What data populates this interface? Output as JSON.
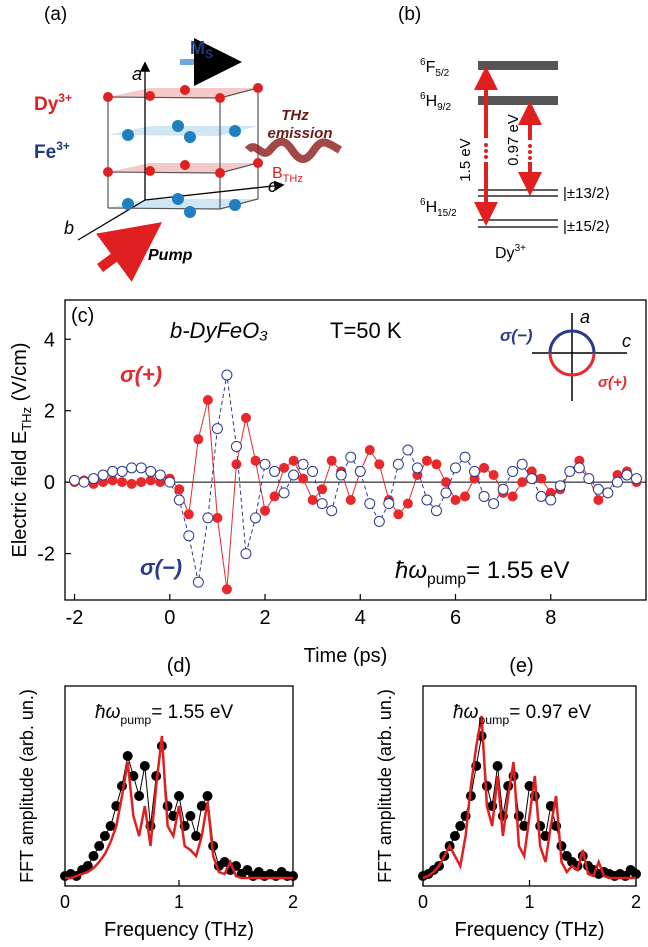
{
  "panel_a": {
    "label": "(a)",
    "axis_a": "a",
    "axis_b": "b",
    "axis_c": "c",
    "ms_base": "M",
    "ms_sub": "S",
    "dy_base": "Dy",
    "dy_sup": "3+",
    "fe_base": "Fe",
    "fe_sup": "3+",
    "thz_line1": "THz",
    "thz_line2": "emission",
    "b_base": "B",
    "b_sub": "THz",
    "pump": "Pump"
  },
  "panel_b": {
    "label": "(b)",
    "levels": [
      {
        "sup": "6",
        "base": "F",
        "sub": "5/2"
      },
      {
        "sup": "6",
        "base": "H",
        "sub": "9/2"
      },
      {
        "sup": "6",
        "base": "H",
        "sub": "15/2"
      }
    ],
    "energy_1": "1.5 eV",
    "energy_2": "0.97 eV",
    "state_1": "|±13/2⟩",
    "state_2": "|±15/2⟩",
    "ion_base": "Dy",
    "ion_sup": "3+"
  },
  "chart_data": [
    {
      "type": "line",
      "panel_label": "(c)",
      "title": "b-DyFeO₃",
      "temperature": "T=50 K",
      "xlabel": "Time (ps)",
      "ylabel": {
        "text": "Electric field E",
        "sub": "THz",
        "unit": " (V/cm)"
      },
      "pump": {
        "symbol": "ħω",
        "sub": "pump",
        "text": "= 1.55 eV"
      },
      "inset": {
        "a": "a",
        "c": "c"
      },
      "x": [
        -2,
        -1.8,
        -1.6,
        -1.4,
        -1.2,
        -1,
        -0.8,
        -0.6,
        -0.4,
        -0.2,
        0,
        0.2,
        0.4,
        0.6,
        0.8,
        1,
        1.2,
        1.4,
        1.6,
        1.8,
        2,
        2.2,
        2.4,
        2.6,
        2.8,
        3,
        3.2,
        3.4,
        3.6,
        3.8,
        4,
        4.2,
        4.4,
        4.6,
        4.8,
        5,
        5.2,
        5.4,
        5.6,
        5.8,
        6,
        6.2,
        6.4,
        6.6,
        6.8,
        7,
        7.2,
        7.4,
        7.6,
        7.8,
        8,
        8.2,
        8.4,
        8.6,
        8.8,
        9,
        9.2,
        9.4,
        9.6,
        9.8
      ],
      "series": [
        {
          "name": "σ(+)",
          "color": "#e8282b",
          "marker": "filled",
          "values": [
            0,
            0.05,
            -0.05,
            0,
            0.05,
            0,
            -0.05,
            0,
            0.05,
            0,
            0.1,
            -0.2,
            -0.9,
            1.2,
            2.3,
            -1.0,
            -3.0,
            0.5,
            1.8,
            0.6,
            -0.8,
            -0.4,
            0.4,
            0.6,
            0.1,
            -0.5,
            -0.2,
            0.6,
            0.3,
            -0.5,
            0.3,
            0.9,
            0.5,
            -0.5,
            -0.9,
            -0.6,
            0.2,
            0.6,
            0.5,
            0.0,
            -0.5,
            -0.4,
            0.1,
            0.4,
            0.2,
            -0.3,
            -0.4,
            0.0,
            0.3,
            0.1,
            -0.3,
            -0.2,
            0.3,
            0.6,
            0.1,
            -0.5,
            -0.3,
            0.2,
            0.3,
            0.0
          ]
        },
        {
          "name": "σ(−)",
          "color": "#2b3a8c",
          "marker": "open",
          "values": [
            0.05,
            0,
            0.1,
            0.2,
            0.3,
            0.3,
            0.4,
            0.4,
            0.3,
            0.2,
            0.0,
            -0.5,
            -1.5,
            -2.8,
            -1.0,
            1.5,
            3.0,
            1.0,
            -2.0,
            -1.0,
            0.5,
            0.3,
            -0.3,
            0.2,
            0.5,
            0.3,
            -0.6,
            -0.8,
            0.2,
            0.7,
            0.3,
            -0.6,
            -1.1,
            -0.6,
            0.5,
            0.9,
            0.4,
            -0.5,
            -0.8,
            -0.3,
            0.4,
            0.7,
            0.3,
            -0.4,
            -0.6,
            -0.2,
            0.3,
            0.5,
            0.1,
            -0.4,
            -0.5,
            -0.1,
            0.3,
            0.4,
            0.1,
            -0.2,
            -0.3,
            0.0,
            0.2,
            0.1
          ]
        }
      ],
      "xlim": [
        -2.2,
        10
      ],
      "ylim": [
        -3.3,
        5.1
      ],
      "xticks": [
        -2,
        0,
        2,
        4,
        6,
        8
      ],
      "yticks": [
        -2,
        0,
        2,
        4
      ],
      "zero_line": true
    },
    {
      "type": "line",
      "panel_label": "(d)",
      "xlabel": "Frequency (THz)",
      "ylabel": "FFT amplitude (arb. un.)",
      "pump": {
        "symbol": "ħω",
        "sub": "pump",
        "text": "= 1.55 eV"
      },
      "x": [
        0,
        0.05,
        0.1,
        0.15,
        0.2,
        0.25,
        0.3,
        0.35,
        0.4,
        0.45,
        0.5,
        0.55,
        0.6,
        0.65,
        0.7,
        0.75,
        0.8,
        0.85,
        0.9,
        0.95,
        1,
        1.05,
        1.1,
        1.15,
        1.2,
        1.25,
        1.3,
        1.35,
        1.4,
        1.45,
        1.5,
        1.55,
        1.6,
        1.65,
        1.7,
        1.75,
        1.8,
        1.85,
        1.9,
        1.95,
        2
      ],
      "series": [
        {
          "color": "#000000",
          "marker": "filled",
          "values": [
            0.05,
            0.06,
            0.05,
            0.08,
            0.1,
            0.15,
            0.2,
            0.25,
            0.3,
            0.4,
            0.5,
            0.65,
            0.55,
            0.45,
            0.6,
            0.3,
            0.55,
            0.7,
            0.4,
            0.35,
            0.45,
            0.3,
            0.35,
            0.25,
            0.4,
            0.45,
            0.2,
            0.1,
            0.12,
            0.08,
            0.1,
            0.06,
            0.08,
            0.05,
            0.07,
            0.05,
            0.06,
            0.05,
            0.07,
            0.05,
            0.05
          ]
        },
        {
          "color": "#e02020",
          "marker": "none",
          "values": [
            0.04,
            0.04,
            0.05,
            0.06,
            0.07,
            0.09,
            0.12,
            0.16,
            0.22,
            0.3,
            0.45,
            0.62,
            0.35,
            0.25,
            0.4,
            0.2,
            0.5,
            0.75,
            0.3,
            0.25,
            0.4,
            0.2,
            0.18,
            0.15,
            0.25,
            0.42,
            0.15,
            0.07,
            0.06,
            0.12,
            0.05,
            0.04,
            0.04,
            0.04,
            0.04,
            0.04,
            0.04,
            0.04,
            0.04,
            0.04,
            0.04
          ]
        }
      ],
      "xlim": [
        0,
        2
      ],
      "ylim": [
        0,
        1
      ],
      "xticks": [
        0,
        1,
        2
      ]
    },
    {
      "type": "line",
      "panel_label": "(e)",
      "xlabel": "Frequency (THz)",
      "ylabel": "FFT amplitude (arb. un.)",
      "pump": {
        "symbol": "ħω",
        "sub": "pump",
        "text": "= 0.97 eV"
      },
      "x": [
        0,
        0.05,
        0.1,
        0.15,
        0.2,
        0.25,
        0.3,
        0.35,
        0.4,
        0.45,
        0.5,
        0.55,
        0.6,
        0.65,
        0.7,
        0.75,
        0.8,
        0.85,
        0.9,
        0.95,
        1,
        1.05,
        1.1,
        1.15,
        1.2,
        1.25,
        1.3,
        1.35,
        1.4,
        1.45,
        1.5,
        1.55,
        1.6,
        1.65,
        1.7,
        1.75,
        1.8,
        1.85,
        1.9,
        1.95,
        2
      ],
      "series": [
        {
          "color": "#000000",
          "marker": "filled",
          "values": [
            0.05,
            0.06,
            0.08,
            0.1,
            0.15,
            0.2,
            0.25,
            0.3,
            0.35,
            0.45,
            0.6,
            0.75,
            0.5,
            0.4,
            0.6,
            0.35,
            0.5,
            0.55,
            0.35,
            0.3,
            0.5,
            0.45,
            0.3,
            0.25,
            0.4,
            0.3,
            0.2,
            0.15,
            0.12,
            0.1,
            0.15,
            0.1,
            0.08,
            0.06,
            0.07,
            0.06,
            0.05,
            0.06,
            0.05,
            0.08,
            0.06
          ]
        },
        {
          "color": "#e02020",
          "marker": "none",
          "values": [
            0.04,
            0.05,
            0.07,
            0.1,
            0.15,
            0.2,
            0.15,
            0.1,
            0.25,
            0.5,
            0.7,
            0.85,
            0.4,
            0.3,
            0.55,
            0.25,
            0.45,
            0.62,
            0.2,
            0.15,
            0.35,
            0.55,
            0.2,
            0.12,
            0.3,
            0.45,
            0.12,
            0.07,
            0.1,
            0.08,
            0.18,
            0.06,
            0.05,
            0.12,
            0.05,
            0.04,
            0.04,
            0.04,
            0.04,
            0.04,
            0.04
          ]
        }
      ],
      "xlim": [
        0,
        2
      ],
      "ylim": [
        0,
        1
      ],
      "xticks": [
        0,
        1,
        2
      ]
    }
  ]
}
